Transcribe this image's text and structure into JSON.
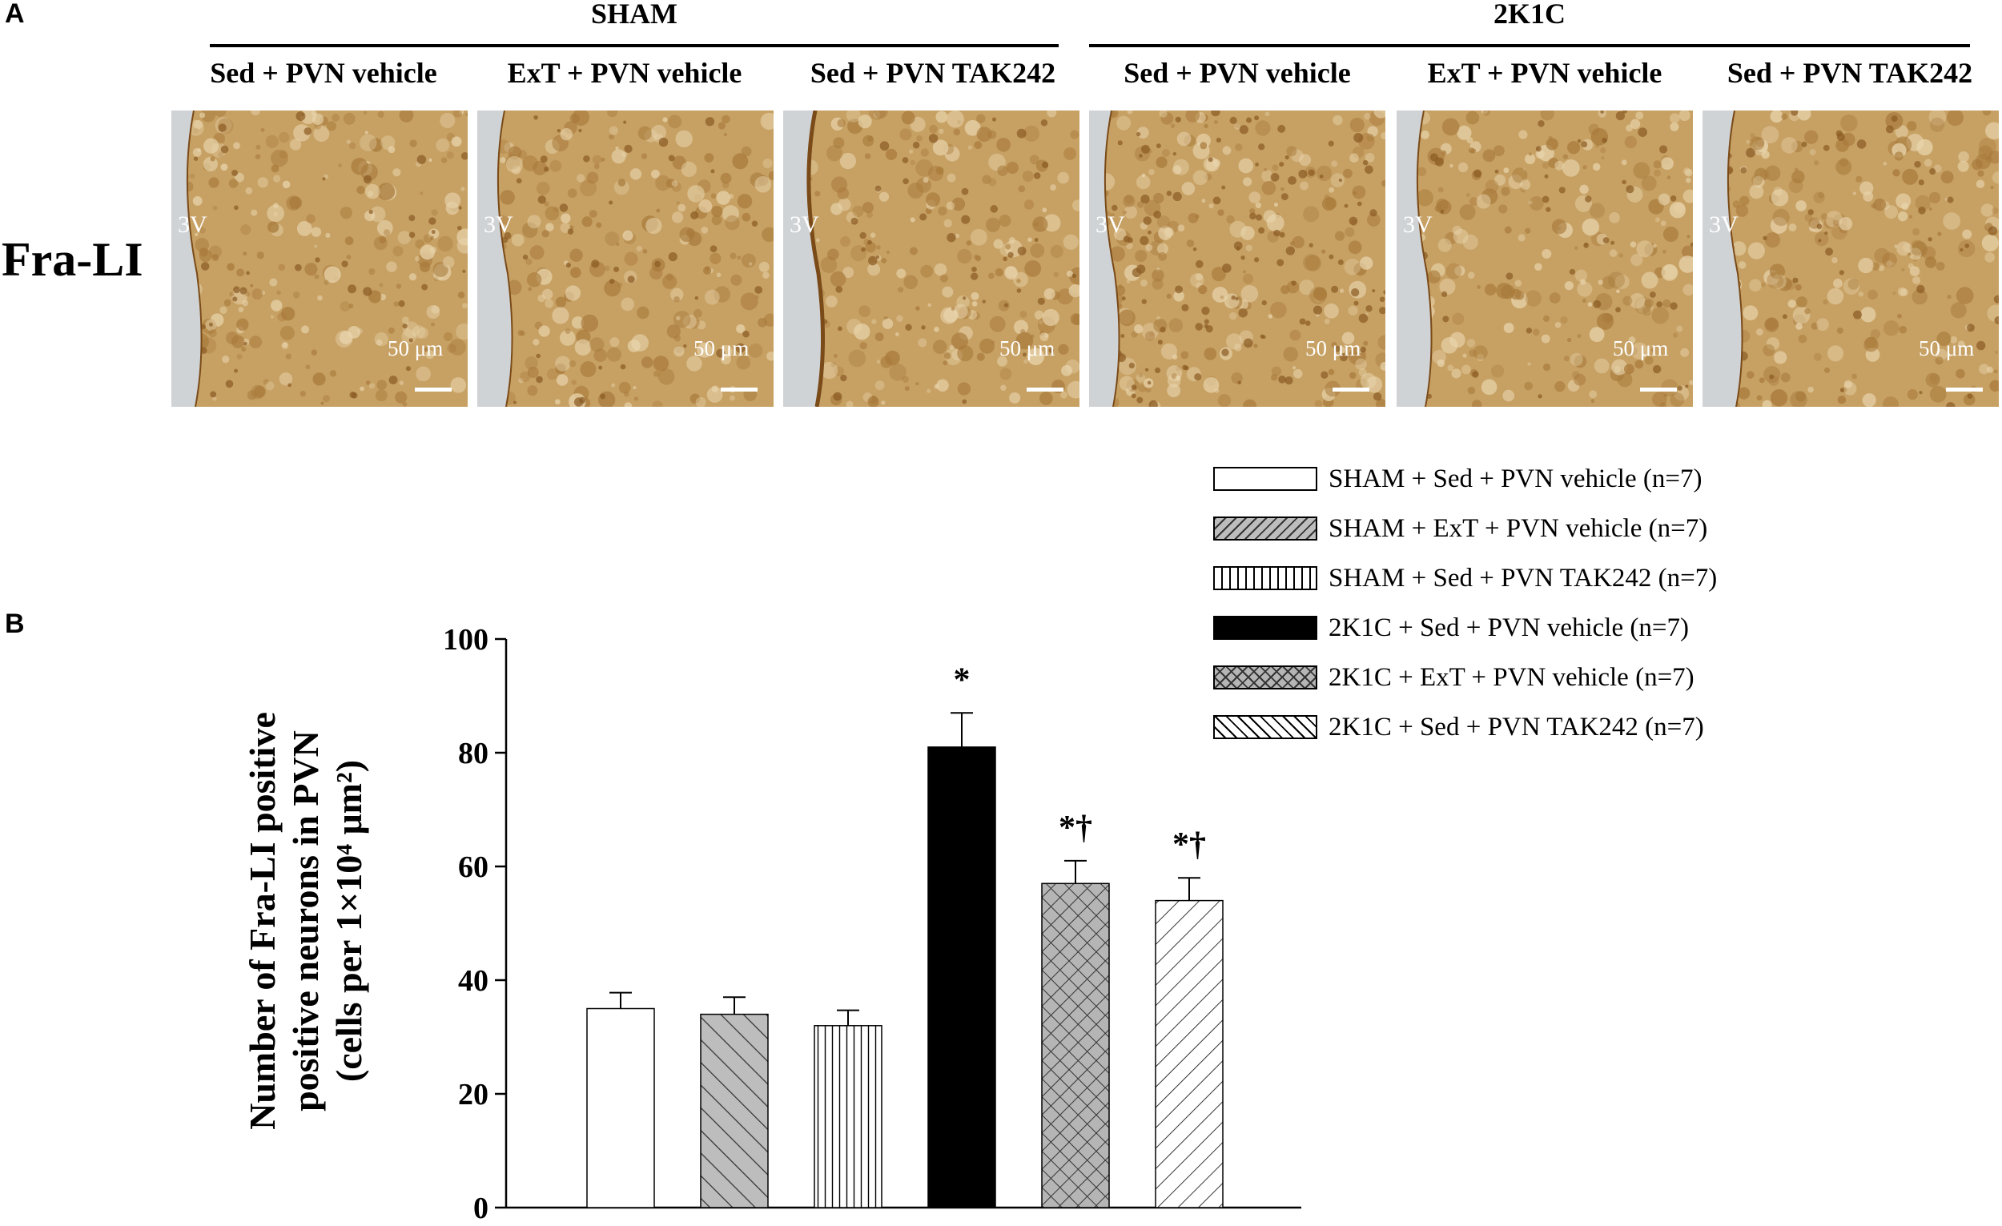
{
  "panel_a": {
    "letter": "A",
    "groups": [
      {
        "title": "SHAM"
      },
      {
        "title": "2K1C"
      }
    ],
    "conditions": [
      "Sed + PVN vehicle",
      "ExT + PVN vehicle",
      "Sed + PVN TAK242",
      "Sed + PVN vehicle",
      "ExT + PVN vehicle",
      "Sed + PVN TAK242"
    ],
    "row_label": "Fra-LI",
    "ventricle_label": "3V",
    "scale_bar_label": "50 μm",
    "stain_color": "#c7a164"
  },
  "panel_b": {
    "letter": "B",
    "legend": [
      "SHAM + Sed + PVN vehicle (n=7)",
      "SHAM + ExT + PVN vehicle (n=7)",
      "SHAM + Sed + PVN TAK242 (n=7)",
      "2K1C + Sed + PVN vehicle (n=7)",
      "2K1C + ExT + PVN vehicle (n=7)",
      "2K1C + Sed + PVN TAK242 (n=7)"
    ],
    "ylabel_lines": [
      "Number of Fra-LI positive",
      "positive neurons in PVN",
      "(cells per 1×10⁴ μm²)"
    ]
  },
  "chart_data": {
    "type": "bar",
    "title": "",
    "xlabel": "",
    "ylabel": "Number of Fra-LI positive positive neurons in PVN (cells per 1×10⁴ μm²)",
    "ylim": [
      0,
      100
    ],
    "yticks": [
      0,
      20,
      40,
      60,
      80,
      100
    ],
    "grid": false,
    "legend_position": "top-right",
    "categories": [
      "SHAM + Sed + PVN vehicle (n=7)",
      "SHAM + ExT + PVN vehicle (n=7)",
      "SHAM + Sed + PVN TAK242 (n=7)",
      "2K1C + Sed + PVN vehicle (n=7)",
      "2K1C + ExT + PVN vehicle (n=7)",
      "2K1C + Sed + PVN TAK242 (n=7)"
    ],
    "values": [
      35,
      34,
      32,
      81,
      57,
      54
    ],
    "errors": [
      2.8,
      3.0,
      2.7,
      6.0,
      4.0,
      4.0
    ],
    "annotations": [
      "",
      "",
      "",
      "*",
      "*†",
      "*†"
    ],
    "fills": [
      "none",
      "diagonal-gray",
      "vertical-lines",
      "solid-black",
      "crosshatch-gray",
      "diagonal-back"
    ]
  }
}
